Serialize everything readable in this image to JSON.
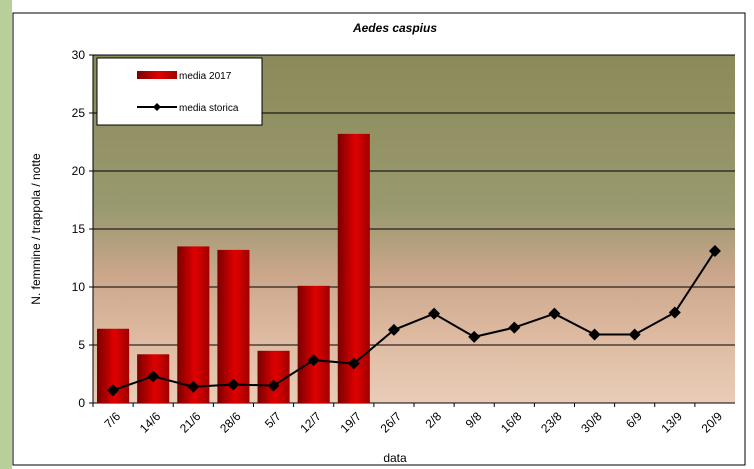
{
  "chart_data": {
    "type": "bar",
    "title": "Aedes caspius",
    "x_label": "data",
    "y_label": "N. femmine / trappola / notte",
    "categories": [
      "7/6",
      "14/6",
      "21/6",
      "28/6",
      "5/7",
      "12/7",
      "19/7",
      "26/7",
      "2/8",
      "9/8",
      "16/8",
      "23/8",
      "30/8",
      "6/9",
      "13/9",
      "20/9"
    ],
    "series": [
      {
        "name": "media 2017",
        "type": "bar",
        "color": "#e00000",
        "values": [
          6.4,
          4.2,
          13.5,
          13.2,
          4.5,
          10.1,
          23.2,
          null,
          null,
          null,
          null,
          null,
          null,
          null,
          null,
          null
        ]
      },
      {
        "name": "media storica",
        "type": "line",
        "color": "#000000",
        "values": [
          1.1,
          2.3,
          1.4,
          1.6,
          1.5,
          3.7,
          3.4,
          6.3,
          7.7,
          5.7,
          6.5,
          7.7,
          5.9,
          5.9,
          7.8,
          13.1
        ]
      }
    ],
    "ylim": [
      0,
      30
    ],
    "yticks": [
      0,
      5,
      10,
      15,
      20,
      25,
      30
    ],
    "grid": true,
    "legend": "top-left"
  }
}
